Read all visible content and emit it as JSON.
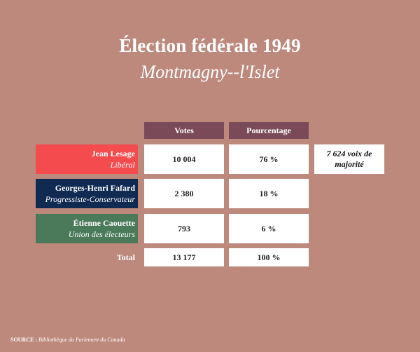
{
  "title": "Élection fédérale 1949",
  "subtitle": "Montmagny--l'Islet",
  "headers": {
    "votes": "Votes",
    "percentage": "Pourcentage"
  },
  "colors": {
    "background": "#be897d",
    "header": "#7a4a59",
    "liberal": "#f44b4f",
    "progressive_conservative": "#102a52",
    "union_des_electeurs": "#4a7a5a"
  },
  "rows": [
    {
      "name": "Jean Lesage",
      "party": "Libéral",
      "votes": "10 004",
      "percentage": "76 %"
    },
    {
      "name": "Georges-Henri Fafard",
      "party": "Progressiste-Conservateur",
      "votes": "2 380",
      "percentage": "18 %"
    },
    {
      "name": "Étienne Caouette",
      "party": "Union des électeurs",
      "votes": "793",
      "percentage": "6 %"
    }
  ],
  "majority": "7 624 voix de majorité",
  "total": {
    "label": "Total",
    "votes": "13 177",
    "percentage": "100 %"
  },
  "source": {
    "label": "SOURCE :",
    "text": "Bibliothèque du Parlement du Canada"
  }
}
